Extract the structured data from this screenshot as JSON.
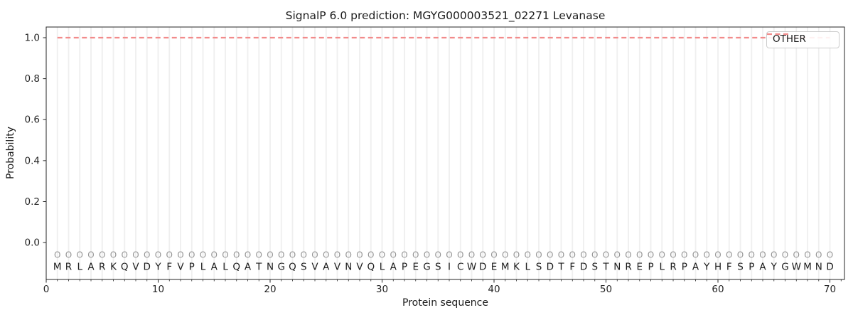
{
  "colors": {
    "background": "#ffffff",
    "grid": "#efefef",
    "spine": "#262626",
    "tick_text": "#262626",
    "marker": "#969696",
    "letter": "#1c1c1c",
    "other_line": "#f28b8b",
    "legend_border": "#cccccc"
  },
  "legend": {
    "label": "OTHER",
    "position": "upper right"
  },
  "chart_data": {
    "type": "line",
    "title": "SignalP 6.0 prediction: MGYG000003521_02271 Levanase",
    "xlabel": "Protein sequence",
    "ylabel": "Probability",
    "xlim": [
      0,
      71.3
    ],
    "ylim": [
      -0.18,
      1.052
    ],
    "xticks": [
      0,
      10,
      20,
      30,
      40,
      50,
      60,
      70
    ],
    "yticks": [
      "0.0",
      "0.2",
      "0.4",
      "0.6",
      "0.8",
      "1.0"
    ],
    "grid": "vertical-line-per-residue",
    "legend_position": "upper right",
    "sequence": "MRLARKQVDYFVPLALQATNGQSVAVNVQLAPEGSICWDEMKLSDTFDSTNREPLRPAYHFSPAYGWMND",
    "marker_symbol": "O",
    "marker_y": -0.06,
    "letter_y": -0.117,
    "series": [
      {
        "name": "OTHER",
        "style": "dashed",
        "color": "#f28b8b",
        "x_range": [
          1,
          70
        ],
        "values": [
          1.0,
          1.0,
          1.0,
          1.0,
          1.0,
          1.0,
          1.0,
          1.0,
          1.0,
          1.0,
          1.0,
          1.0,
          1.0,
          1.0,
          1.0,
          1.0,
          1.0,
          1.0,
          1.0,
          1.0,
          1.0,
          1.0,
          1.0,
          1.0,
          1.0,
          1.0,
          1.0,
          1.0,
          1.0,
          1.0,
          1.0,
          1.0,
          1.0,
          1.0,
          1.0,
          1.0,
          1.0,
          1.0,
          1.0,
          1.0,
          1.0,
          1.0,
          1.0,
          1.0,
          1.0,
          1.0,
          1.0,
          1.0,
          1.0,
          1.0,
          1.0,
          1.0,
          1.0,
          1.0,
          1.0,
          1.0,
          1.0,
          1.0,
          1.0,
          1.0,
          1.0,
          1.0,
          1.0,
          1.0,
          1.0,
          1.0,
          1.0,
          1.0,
          1.0,
          1.0
        ]
      }
    ]
  }
}
